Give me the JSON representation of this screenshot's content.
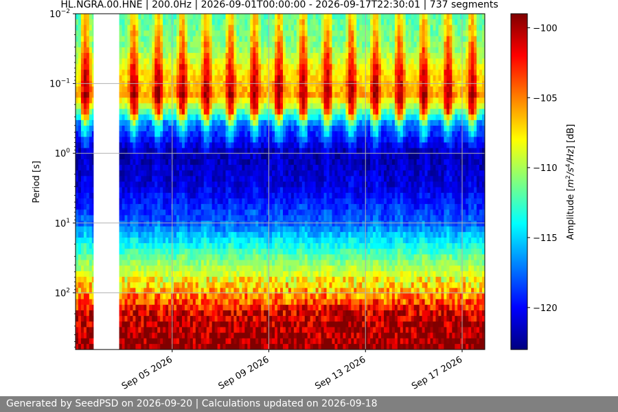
{
  "chart_data": {
    "type": "heatmap",
    "title": "HL.NGRA.00.HNE | 200.0Hz | 2026-09-01T00:00:00 - 2026-09-17T22:30:01 | 737 segments",
    "ylabel": "Period [s]",
    "y_scale": "log",
    "y_inverted": true,
    "ylim_period_s": [
      0.01,
      650
    ],
    "y_ticks": [
      {
        "value": 0.01,
        "base": "10",
        "exp": "−2"
      },
      {
        "value": 0.1,
        "base": "10",
        "exp": "−1"
      },
      {
        "value": 1,
        "base": "10",
        "exp": "0"
      },
      {
        "value": 10,
        "base": "10",
        "exp": "1"
      },
      {
        "value": 100,
        "base": "10",
        "exp": "2"
      }
    ],
    "xlim": [
      "2026-09-01T00:00:00",
      "2026-09-17T22:30:01"
    ],
    "x_ticks": [
      {
        "date": "2026-09-05",
        "label": "Sep 05 2026"
      },
      {
        "date": "2026-09-09",
        "label": "Sep 09 2026"
      },
      {
        "date": "2026-09-13",
        "label": "Sep 13 2026"
      },
      {
        "date": "2026-09-17",
        "label": "Sep 17 2026"
      }
    ],
    "grid": true,
    "colormap": "jet",
    "colorbar": {
      "label_prefix": "Amplitude [",
      "label_suffix": "] [dB]",
      "units": {
        "m": "m",
        "m_exp": "2",
        "s": "/s",
        "s_exp": "4",
        "tail": "/Hz"
      },
      "vmin": -123,
      "vmax": -99,
      "ticks": [
        {
          "value": -100,
          "label": "−100"
        },
        {
          "value": -105,
          "label": "−105"
        },
        {
          "value": -110,
          "label": "−110"
        },
        {
          "value": -115,
          "label": "−115"
        },
        {
          "value": -120,
          "label": "−120"
        }
      ]
    },
    "data_gaps": [
      {
        "start": "2026-09-01T18:00:00",
        "end": "2026-09-02T19:00:00"
      }
    ],
    "amplitude_profile_db": {
      "period_s": [
        0.01,
        0.03,
        0.06,
        0.15,
        0.25,
        0.4,
        1,
        3,
        10,
        30,
        100,
        200,
        650
      ],
      "day_db": [
        -107,
        -104,
        -101.5,
        -99.5,
        -102,
        -112,
        -121,
        -120,
        -117,
        -111,
        -106,
        -101,
        -99
      ],
      "night_db": [
        -112,
        -111,
        -108,
        -106,
        -112,
        -118,
        -122,
        -121,
        -118,
        -112,
        -106,
        -101,
        -99
      ]
    }
  },
  "footer": {
    "text": "Generated by SeedPSD on 2026-09-20 | Calculations updated on 2026-09-18"
  }
}
